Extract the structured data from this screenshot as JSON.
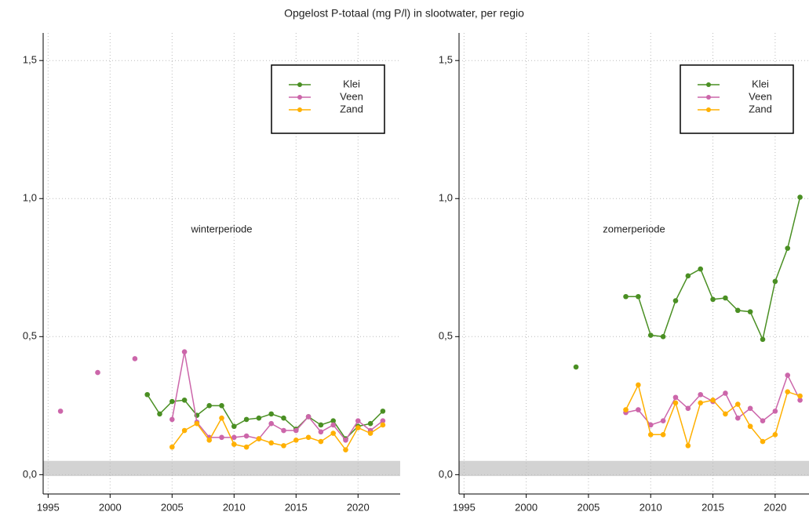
{
  "title": "Opgelost P-totaal (mg P/l) in slootwater, per regio",
  "chart_data": [
    {
      "type": "line",
      "annotation": "winterperiode",
      "x": [
        1996,
        1997,
        1998,
        1999,
        2000,
        2001,
        2002,
        2003,
        2004,
        2005,
        2006,
        2007,
        2008,
        2009,
        2010,
        2011,
        2012,
        2013,
        2014,
        2015,
        2016,
        2017,
        2018,
        2019,
        2020,
        2021,
        2022
      ],
      "series": [
        {
          "name": "Klei",
          "color": "#4a8f23",
          "values": [
            null,
            null,
            null,
            null,
            null,
            null,
            null,
            0.29,
            0.22,
            0.265,
            0.27,
            0.215,
            0.25,
            0.25,
            0.175,
            0.2,
            0.205,
            0.22,
            0.205,
            0.165,
            0.21,
            0.18,
            0.195,
            0.13,
            0.175,
            0.185,
            0.23
          ]
        },
        {
          "name": "Veen",
          "color": "#cc66aa",
          "values": [
            0.23,
            null,
            null,
            0.37,
            null,
            null,
            0.42,
            null,
            null,
            0.2,
            0.445,
            0.19,
            0.135,
            0.135,
            0.135,
            0.14,
            0.13,
            0.185,
            0.16,
            0.16,
            0.21,
            0.155,
            0.18,
            0.125,
            0.195,
            0.16,
            0.195
          ]
        },
        {
          "name": "Zand",
          "color": "#ffb000",
          "values": [
            null,
            null,
            null,
            null,
            null,
            null,
            null,
            null,
            null,
            0.1,
            0.16,
            0.185,
            0.125,
            0.205,
            0.11,
            0.1,
            0.13,
            0.115,
            0.105,
            0.125,
            0.135,
            0.12,
            0.15,
            0.09,
            0.17,
            0.15,
            0.18
          ]
        }
      ],
      "xlim": [
        1994.6,
        2023.4
      ],
      "xticks": [
        1995,
        2000,
        2005,
        2010,
        2015,
        2020
      ],
      "ylim": [
        -0.07,
        1.6
      ],
      "yticks": [
        {
          "value": 0,
          "label": "0,0"
        },
        {
          "value": 0.5,
          "label": "0,5"
        },
        {
          "value": 1,
          "label": "1,0"
        },
        {
          "value": 1.5,
          "label": "1,5"
        }
      ],
      "shaded_band": [
        -0.005,
        0.05
      ],
      "grid": true,
      "legend": "top-right"
    },
    {
      "type": "line",
      "annotation": "zomerperiode",
      "x": [
        2004,
        2005,
        2006,
        2007,
        2008,
        2009,
        2010,
        2011,
        2012,
        2013,
        2014,
        2015,
        2016,
        2017,
        2018,
        2019,
        2020,
        2021,
        2022
      ],
      "series": [
        {
          "name": "Klei",
          "color": "#4a8f23",
          "values": [
            0.39,
            null,
            null,
            null,
            0.645,
            0.645,
            0.505,
            0.5,
            0.63,
            0.72,
            0.745,
            0.635,
            0.64,
            0.595,
            0.59,
            0.49,
            0.7,
            0.82,
            1.005
          ]
        },
        {
          "name": "Veen",
          "color": "#cc66aa",
          "values": [
            null,
            null,
            null,
            null,
            0.225,
            0.235,
            0.18,
            0.195,
            0.28,
            0.24,
            0.29,
            0.265,
            0.295,
            0.205,
            0.24,
            0.195,
            0.23,
            0.36,
            0.27
          ]
        },
        {
          "name": "Zand",
          "color": "#ffb000",
          "values": [
            null,
            null,
            null,
            null,
            0.235,
            0.325,
            0.145,
            0.145,
            0.26,
            0.105,
            0.26,
            0.27,
            0.22,
            0.255,
            0.175,
            0.12,
            0.145,
            0.3,
            0.285
          ]
        }
      ],
      "xlim": [
        1994.6,
        2022.72
      ],
      "xticks": [
        1995,
        2000,
        2005,
        2010,
        2015,
        2020
      ],
      "ylim": [
        -0.07,
        1.6
      ],
      "yticks": [
        {
          "value": 0,
          "label": "0,0"
        },
        {
          "value": 0.5,
          "label": "0,5"
        },
        {
          "value": 1,
          "label": "1,0"
        },
        {
          "value": 1.5,
          "label": "1,5"
        }
      ],
      "shaded_band": [
        -0.005,
        0.05
      ],
      "grid": true,
      "legend": "top-right"
    }
  ]
}
